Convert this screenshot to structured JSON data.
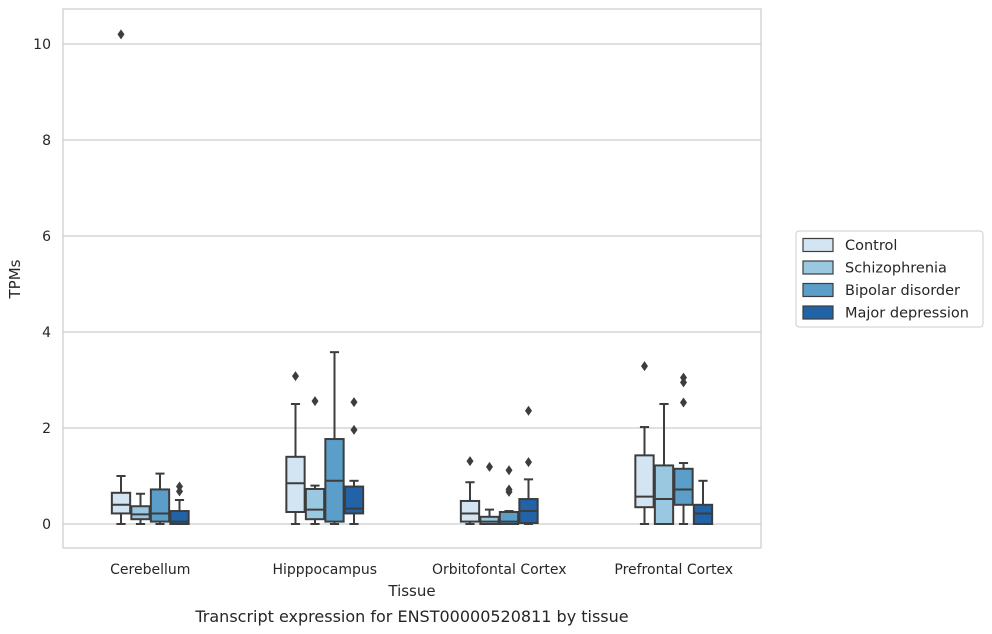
{
  "chart_data": {
    "type": "box",
    "title": "",
    "caption": "Transcript expression for ENST00000520811 by tissue",
    "xlabel": "Tissue",
    "ylabel": "TPMs",
    "ylim": [
      -0.5,
      10.7
    ],
    "yticks": [
      0,
      2,
      4,
      6,
      8,
      10
    ],
    "grid": true,
    "legend_placement": "right",
    "categories": [
      "Cerebellum",
      "Hipppocampus",
      "Orbitofontal Cortex",
      "Prefrontal Cortex"
    ],
    "series": [
      {
        "name": "Control",
        "color": "#d3e4f3",
        "boxes": [
          {
            "whislo": 0.0,
            "q1": 0.22,
            "med": 0.4,
            "q3": 0.65,
            "whishi": 1.0,
            "fliers": [
              10.2
            ]
          },
          {
            "whislo": 0.0,
            "q1": 0.25,
            "med": 0.85,
            "q3": 1.4,
            "whishi": 2.5,
            "fliers": [
              3.08
            ]
          },
          {
            "whislo": 0.0,
            "q1": 0.05,
            "med": 0.22,
            "q3": 0.48,
            "whishi": 0.87,
            "fliers": [
              1.31
            ]
          },
          {
            "whislo": 0.0,
            "q1": 0.35,
            "med": 0.57,
            "q3": 1.43,
            "whishi": 2.02,
            "fliers": [
              3.29
            ]
          }
        ]
      },
      {
        "name": "Schizophrenia",
        "color": "#9ac8e0",
        "boxes": [
          {
            "whislo": 0.0,
            "q1": 0.1,
            "med": 0.2,
            "q3": 0.37,
            "whishi": 0.63,
            "fliers": []
          },
          {
            "whislo": 0.0,
            "q1": 0.1,
            "med": 0.3,
            "q3": 0.73,
            "whishi": 0.8,
            "fliers": [
              2.56
            ]
          },
          {
            "whislo": 0.0,
            "q1": 0.0,
            "med": 0.05,
            "q3": 0.15,
            "whishi": 0.3,
            "fliers": [
              1.19
            ]
          },
          {
            "whislo": 0.0,
            "q1": 0.0,
            "med": 0.52,
            "q3": 1.22,
            "whishi": 2.5,
            "fliers": []
          }
        ]
      },
      {
        "name": "Bipolar disorder",
        "color": "#5a9ec9",
        "boxes": [
          {
            "whislo": 0.0,
            "q1": 0.05,
            "med": 0.22,
            "q3": 0.72,
            "whishi": 1.05,
            "fliers": []
          },
          {
            "whislo": 0.0,
            "q1": 0.05,
            "med": 0.9,
            "q3": 1.77,
            "whishi": 3.58,
            "fliers": []
          },
          {
            "whislo": 0.0,
            "q1": 0.0,
            "med": 0.05,
            "q3": 0.25,
            "whishi": 0.27,
            "fliers": [
              1.12,
              0.72,
              0.67
            ]
          },
          {
            "whislo": 0.0,
            "q1": 0.4,
            "med": 0.72,
            "q3": 1.15,
            "whishi": 1.27,
            "fliers": [
              3.05,
              2.95,
              2.53
            ]
          }
        ]
      },
      {
        "name": "Major depression",
        "color": "#2262a7",
        "boxes": [
          {
            "whislo": 0.0,
            "q1": 0.0,
            "med": 0.05,
            "q3": 0.27,
            "whishi": 0.5,
            "fliers": [
              0.78,
              0.68
            ]
          },
          {
            "whislo": 0.0,
            "q1": 0.22,
            "med": 0.32,
            "q3": 0.78,
            "whishi": 0.9,
            "fliers": [
              2.54,
              1.96
            ]
          },
          {
            "whislo": 0.0,
            "q1": 0.02,
            "med": 0.27,
            "q3": 0.52,
            "whishi": 0.93,
            "fliers": [
              2.36,
              1.29
            ]
          },
          {
            "whislo": 0.0,
            "q1": 0.0,
            "med": 0.22,
            "q3": 0.4,
            "whishi": 0.9,
            "fliers": []
          }
        ]
      }
    ]
  }
}
